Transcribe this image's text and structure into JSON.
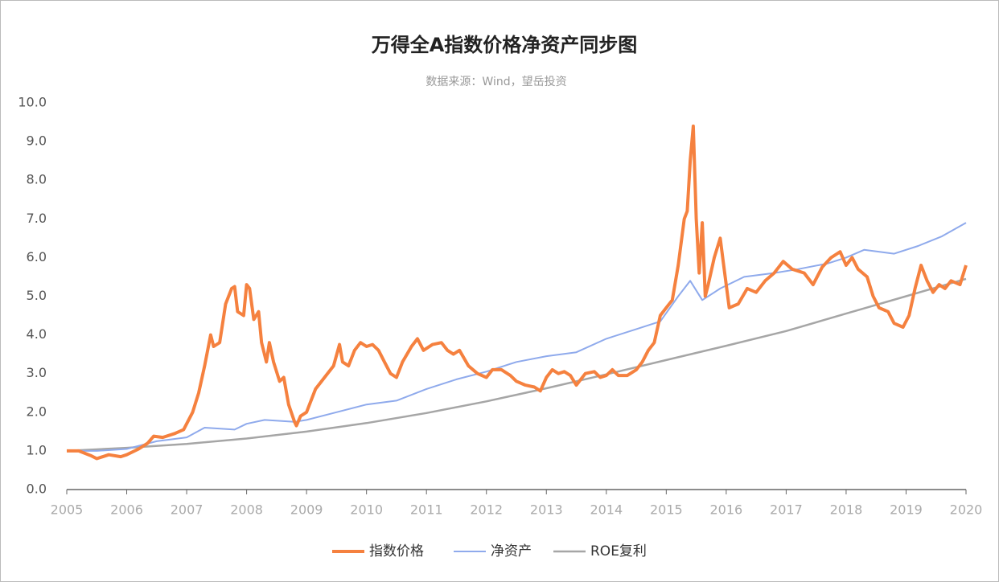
{
  "chart_data": {
    "type": "line",
    "title": "万得全A指数价格净资产同步图",
    "subtitle": "数据来源：Wind，望岳投资",
    "xlim": [
      2005,
      2020
    ],
    "xticks": [
      2005,
      2006,
      2007,
      2008,
      2009,
      2010,
      2011,
      2012,
      2013,
      2014,
      2015,
      2016,
      2017,
      2018,
      2019,
      2020
    ],
    "ylim": [
      0,
      10
    ],
    "yticks": [
      {
        "value": 0,
        "label": "0.0"
      },
      {
        "value": 1,
        "label": "1.0"
      },
      {
        "value": 2,
        "label": "2.0"
      },
      {
        "value": 3,
        "label": "3.0"
      },
      {
        "value": 4,
        "label": "4.0"
      },
      {
        "value": 5,
        "label": "5.0"
      },
      {
        "value": 6,
        "label": "6.0"
      },
      {
        "value": 7,
        "label": "7.0"
      },
      {
        "value": 8,
        "label": "8.0"
      },
      {
        "value": 9,
        "label": "9.0"
      },
      {
        "value": 10,
        "label": "10.0"
      }
    ],
    "legend": "bottom",
    "series": [
      {
        "name": "指数价格",
        "color": "#f5813f",
        "width": 4,
        "x": [
          2005.0,
          2005.2,
          2005.4,
          2005.5,
          2005.7,
          2005.9,
          2006.0,
          2006.2,
          2006.35,
          2006.45,
          2006.6,
          2006.8,
          2006.95,
          2007.1,
          2007.2,
          2007.3,
          2007.4,
          2007.45,
          2007.55,
          2007.65,
          2007.75,
          2007.8,
          2007.85,
          2007.95,
          2008.0,
          2008.05,
          2008.12,
          2008.2,
          2008.25,
          2008.33,
          2008.38,
          2008.45,
          2008.55,
          2008.62,
          2008.7,
          2008.8,
          2008.83,
          2008.9,
          2009.0,
          2009.15,
          2009.3,
          2009.45,
          2009.55,
          2009.6,
          2009.7,
          2009.8,
          2009.9,
          2010.0,
          2010.1,
          2010.2,
          2010.3,
          2010.4,
          2010.5,
          2010.6,
          2010.75,
          2010.85,
          2010.95,
          2011.1,
          2011.25,
          2011.35,
          2011.45,
          2011.55,
          2011.7,
          2011.85,
          2012.0,
          2012.1,
          2012.25,
          2012.4,
          2012.5,
          2012.65,
          2012.8,
          2012.9,
          2013.0,
          2013.1,
          2013.2,
          2013.3,
          2013.4,
          2013.5,
          2013.65,
          2013.8,
          2013.9,
          2014.0,
          2014.1,
          2014.2,
          2014.35,
          2014.5,
          2014.6,
          2014.7,
          2014.8,
          2014.9,
          2015.0,
          2015.1,
          2015.2,
          2015.3,
          2015.35,
          2015.4,
          2015.45,
          2015.5,
          2015.55,
          2015.6,
          2015.65,
          2015.7,
          2015.8,
          2015.9,
          2015.95,
          2016.05,
          2016.2,
          2016.35,
          2016.5,
          2016.65,
          2016.8,
          2016.95,
          2017.1,
          2017.3,
          2017.45,
          2017.6,
          2017.75,
          2017.9,
          2018.0,
          2018.1,
          2018.2,
          2018.35,
          2018.45,
          2018.55,
          2018.7,
          2018.8,
          2018.95,
          2019.05,
          2019.15,
          2019.25,
          2019.35,
          2019.45,
          2019.55,
          2019.65,
          2019.75,
          2019.9,
          2020.0
        ],
        "values": [
          1.0,
          1.0,
          0.88,
          0.8,
          0.9,
          0.85,
          0.9,
          1.05,
          1.2,
          1.38,
          1.35,
          1.45,
          1.55,
          2.0,
          2.5,
          3.2,
          4.0,
          3.7,
          3.8,
          4.8,
          5.2,
          5.25,
          4.6,
          4.5,
          5.3,
          5.2,
          4.4,
          4.6,
          3.8,
          3.3,
          3.8,
          3.3,
          2.8,
          2.9,
          2.2,
          1.75,
          1.65,
          1.9,
          2.0,
          2.6,
          2.9,
          3.2,
          3.75,
          3.3,
          3.2,
          3.6,
          3.8,
          3.7,
          3.75,
          3.6,
          3.3,
          3.0,
          2.9,
          3.3,
          3.7,
          3.9,
          3.6,
          3.75,
          3.8,
          3.6,
          3.5,
          3.6,
          3.2,
          3.0,
          2.9,
          3.1,
          3.1,
          2.95,
          2.8,
          2.7,
          2.65,
          2.55,
          2.9,
          3.1,
          3.0,
          3.05,
          2.95,
          2.7,
          3.0,
          3.05,
          2.9,
          2.95,
          3.1,
          2.95,
          2.95,
          3.1,
          3.3,
          3.6,
          3.8,
          4.5,
          4.7,
          4.9,
          5.8,
          7.0,
          7.2,
          8.5,
          9.4,
          7.0,
          5.6,
          6.9,
          5.0,
          5.3,
          6.0,
          6.5,
          5.9,
          4.7,
          4.8,
          5.2,
          5.1,
          5.4,
          5.6,
          5.9,
          5.7,
          5.6,
          5.3,
          5.75,
          6.0,
          6.15,
          5.8,
          6.0,
          5.7,
          5.5,
          5.0,
          4.7,
          4.6,
          4.3,
          4.2,
          4.5,
          5.2,
          5.8,
          5.4,
          5.1,
          5.3,
          5.2,
          5.4,
          5.3,
          5.8
        ]
      },
      {
        "name": "净资产",
        "color": "#8faaec",
        "width": 2,
        "x": [
          2005,
          2005.5,
          2006,
          2006.5,
          2007,
          2007.3,
          2007.8,
          2008,
          2008.3,
          2008.8,
          2009,
          2009.5,
          2010,
          2010.5,
          2011,
          2011.5,
          2012,
          2012.5,
          2013,
          2013.5,
          2014,
          2014.5,
          2014.9,
          2015.2,
          2015.4,
          2015.6,
          2015.9,
          2016.3,
          2016.8,
          2017.2,
          2017.7,
          2018,
          2018.3,
          2018.8,
          2019.2,
          2019.6,
          2020
        ],
        "values": [
          1.0,
          1.0,
          1.05,
          1.25,
          1.35,
          1.6,
          1.55,
          1.7,
          1.8,
          1.75,
          1.8,
          2.0,
          2.2,
          2.3,
          2.6,
          2.85,
          3.05,
          3.3,
          3.45,
          3.55,
          3.9,
          4.15,
          4.35,
          5.0,
          5.4,
          4.9,
          5.2,
          5.5,
          5.6,
          5.7,
          5.85,
          6.0,
          6.2,
          6.1,
          6.3,
          6.55,
          6.9
        ]
      },
      {
        "name": "ROE复利",
        "color": "#a6a6a6",
        "width": 2.5,
        "x": [
          2005,
          2006,
          2007,
          2008,
          2009,
          2010,
          2011,
          2012,
          2013,
          2014,
          2015,
          2016,
          2017,
          2018,
          2019,
          2020
        ],
        "values": [
          1.0,
          1.08,
          1.18,
          1.32,
          1.5,
          1.72,
          1.98,
          2.28,
          2.62,
          2.98,
          3.35,
          3.72,
          4.1,
          4.55,
          5.0,
          5.45
        ]
      }
    ]
  }
}
